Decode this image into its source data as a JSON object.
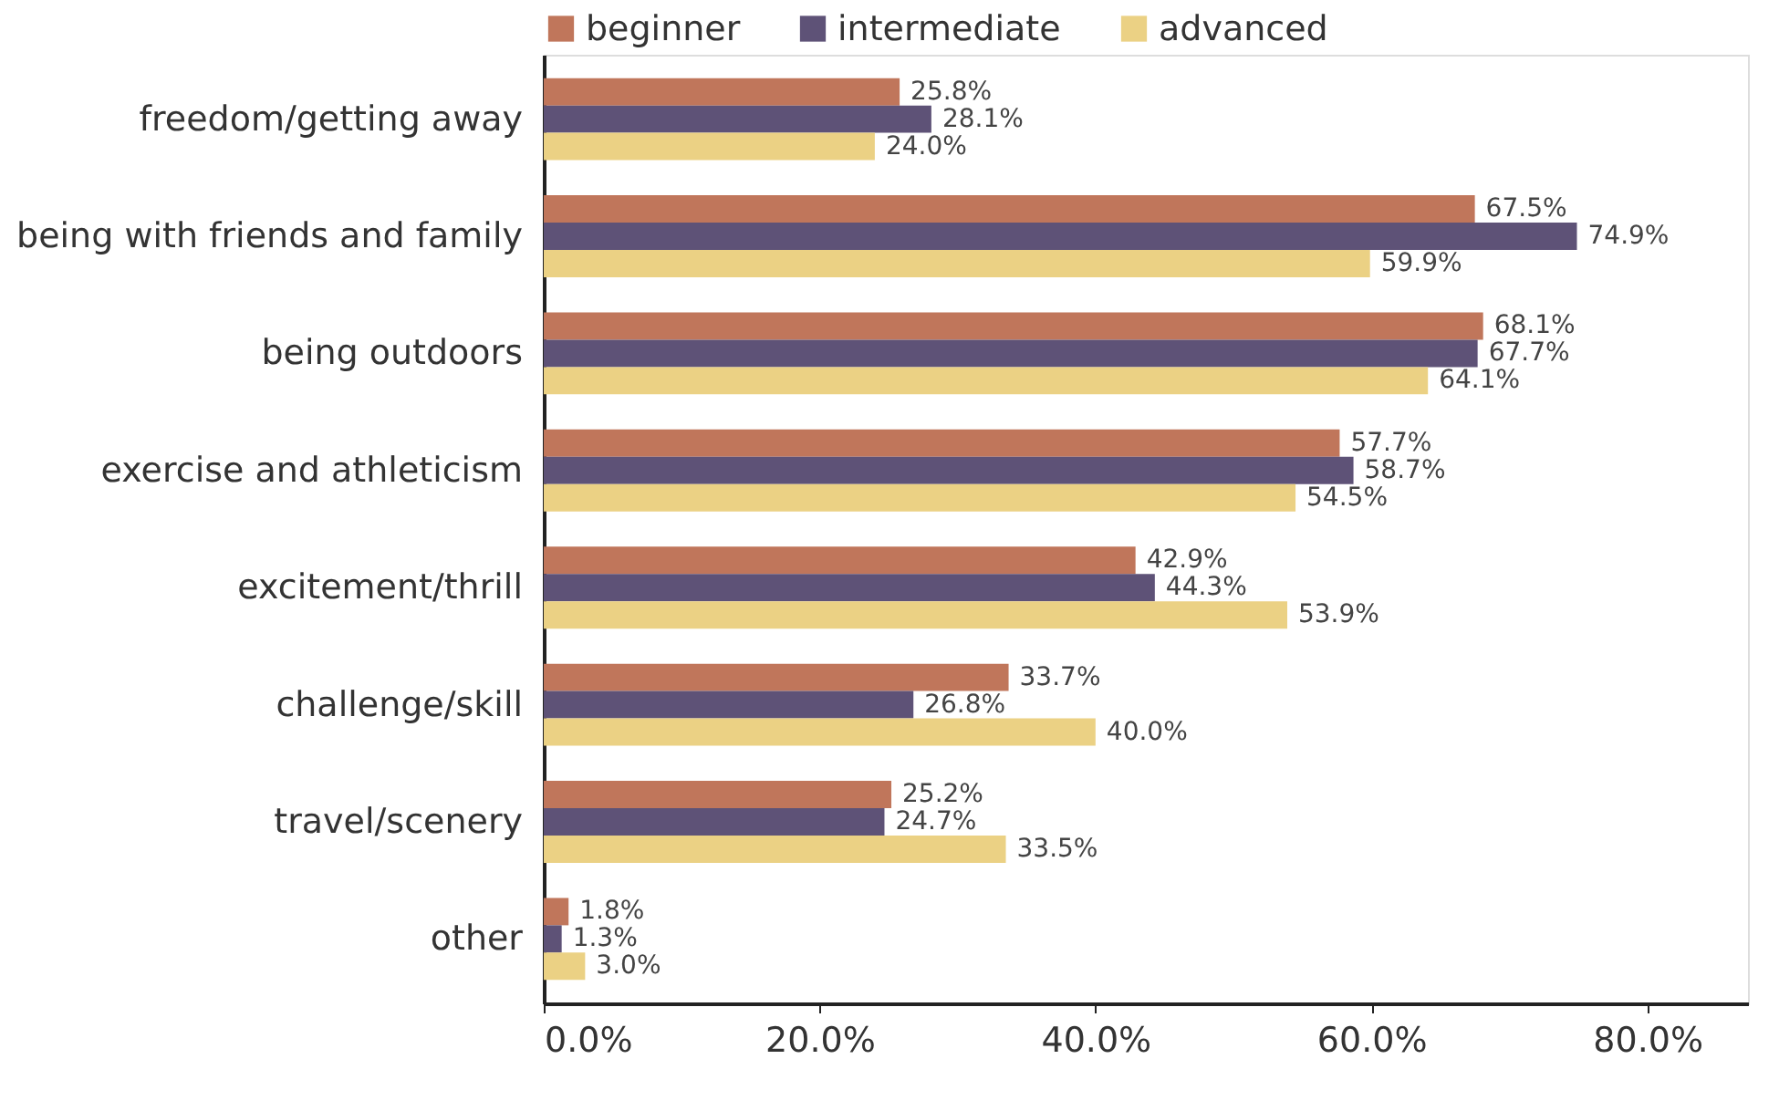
{
  "chart_data": {
    "type": "bar",
    "orientation": "horizontal",
    "categories": [
      "freedom/getting away",
      "being with friends and family",
      "being outdoors",
      "exercise and athleticism",
      "excitement/thrill",
      "challenge/skill",
      "travel/scenery",
      "other"
    ],
    "series": [
      {
        "name": "beginner",
        "color": "#c0765b",
        "values": [
          25.8,
          67.5,
          68.1,
          57.7,
          42.9,
          33.7,
          25.2,
          1.8
        ],
        "value_labels": [
          "25.8%",
          "67.5%",
          "68.1%",
          "57.7%",
          "42.9%",
          "33.7%",
          "25.2%",
          "1.8%"
        ]
      },
      {
        "name": "intermediate",
        "color": "#5e5277",
        "values": [
          28.1,
          74.9,
          67.7,
          58.7,
          44.3,
          26.8,
          24.7,
          1.3
        ],
        "value_labels": [
          "28.1%",
          "74.9%",
          "67.7%",
          "58.7%",
          "44.3%",
          "26.8%",
          "24.7%",
          "1.3%"
        ]
      },
      {
        "name": "advanced",
        "color": "#ebd184",
        "values": [
          24.0,
          59.9,
          64.1,
          54.5,
          53.9,
          40.0,
          33.5,
          3.0
        ],
        "value_labels": [
          "24.0%",
          "59.9%",
          "64.1%",
          "54.5%",
          "53.9%",
          "40.0%",
          "33.5%",
          "3.0%"
        ]
      }
    ],
    "xlim": [
      0,
      87.3
    ],
    "xticks": [
      {
        "value": 0,
        "label": "0.0%"
      },
      {
        "value": 20,
        "label": "20.0%"
      },
      {
        "value": 40,
        "label": "40.0%"
      },
      {
        "value": 60,
        "label": "60.0%"
      },
      {
        "value": 80,
        "label": "80.0%"
      }
    ],
    "grid": false,
    "legend": "top"
  }
}
